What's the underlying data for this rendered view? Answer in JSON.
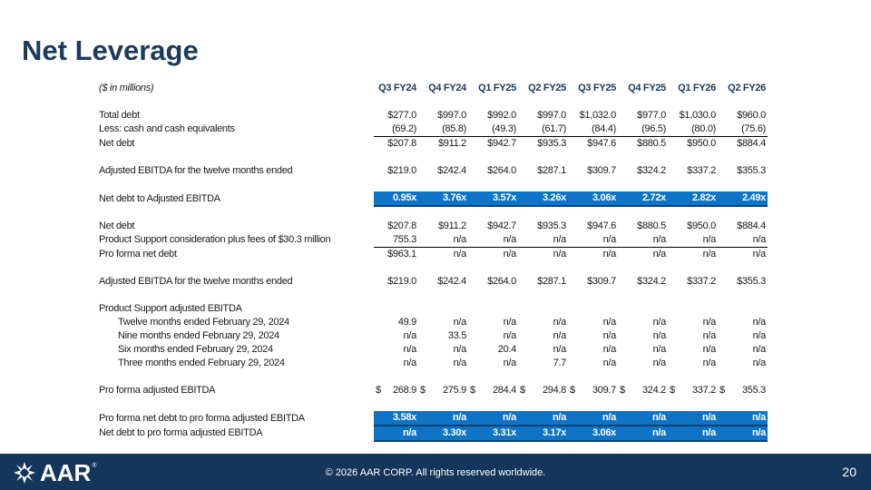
{
  "slide": {
    "title": "Net Leverage",
    "units_note": "($ in millions)",
    "columns": [
      "Q3 FY24",
      "Q4 FY24",
      "Q1 FY25",
      "Q2 FY25",
      "Q3 FY25",
      "Q4 FY25",
      "Q1 FY26",
      "Q2 FY26"
    ]
  },
  "rows": {
    "total_debt": {
      "label": "Total debt",
      "values": [
        "$277.0",
        "$997.0",
        "$992.0",
        "$997.0",
        "$1,032.0",
        "$977.0",
        "$1,030.0",
        "$960.0"
      ]
    },
    "less_cash": {
      "label": "Less: cash and cash equivalents",
      "values": [
        "(69.2)",
        "(85.8)",
        "(49.3)",
        "(61.7)",
        "(84.4)",
        "(96.5)",
        "(80.0)",
        "(75.6)"
      ]
    },
    "net_debt": {
      "label": "Net debt",
      "values": [
        "$207.8",
        "$911.2",
        "$942.7",
        "$935.3",
        "$947.6",
        "$880.5",
        "$950.0",
        "$884.4"
      ]
    },
    "adj_ebitda": {
      "label": "Adjusted EBITDA for the twelve months ended",
      "values": [
        "$219.0",
        "$242.4",
        "$264.0",
        "$287.1",
        "$309.7",
        "$324.2",
        "$337.2",
        "$355.3"
      ]
    },
    "net_debt_to_ebitda": {
      "label": "Net debt to Adjusted EBITDA",
      "values": [
        "0.95x",
        "3.76x",
        "3.57x",
        "3.26x",
        "3.06x",
        "2.72x",
        "2.82x",
        "2.49x"
      ]
    },
    "net_debt_2": {
      "label": "Net debt",
      "values": [
        "$207.8",
        "$911.2",
        "$942.7",
        "$935.3",
        "$947.6",
        "$880.5",
        "$950.0",
        "$884.4"
      ]
    },
    "product_support": {
      "label": "Product Support consideration plus fees of $30.3 million",
      "values": [
        "755.3",
        "n/a",
        "n/a",
        "n/a",
        "n/a",
        "n/a",
        "n/a",
        "n/a"
      ]
    },
    "pro_forma_net_debt": {
      "label": "Pro forma net debt",
      "values": [
        "$963.1",
        "n/a",
        "n/a",
        "n/a",
        "n/a",
        "n/a",
        "n/a",
        "n/a"
      ]
    },
    "adj_ebitda_2": {
      "label": "Adjusted EBITDA for the twelve months ended",
      "values": [
        "$219.0",
        "$242.4",
        "$264.0",
        "$287.1",
        "$309.7",
        "$324.2",
        "$337.2",
        "$355.3"
      ]
    },
    "ps_adj_ebitda": {
      "label": "Product Support adjusted EBITDA"
    },
    "twelve_months": {
      "label": "Twelve months ended February 29, 2024",
      "values": [
        "49.9",
        "n/a",
        "n/a",
        "n/a",
        "n/a",
        "n/a",
        "n/a",
        "n/a"
      ]
    },
    "nine_months": {
      "label": "Nine months ended February 29, 2024",
      "values": [
        "n/a",
        "33.5",
        "n/a",
        "n/a",
        "n/a",
        "n/a",
        "n/a",
        "n/a"
      ]
    },
    "six_months": {
      "label": "Six months ended February 29, 2024",
      "values": [
        "n/a",
        "n/a",
        "20.4",
        "n/a",
        "n/a",
        "n/a",
        "n/a",
        "n/a"
      ]
    },
    "three_months": {
      "label": "Three months ended February 29, 2024",
      "values": [
        "n/a",
        "n/a",
        "n/a",
        "7.7",
        "n/a",
        "n/a",
        "n/a",
        "n/a"
      ]
    },
    "pro_forma_adj_ebitda": {
      "label": "Pro forma adjusted EBITDA",
      "currency": "$",
      "values": [
        "268.9",
        "275.9",
        "284.4",
        "294.8",
        "309.7",
        "324.2",
        "337.2",
        "355.3"
      ]
    },
    "pf_net_debt_to_pf_ebitda": {
      "label": "Pro forma net debt to pro forma adjusted EBITDA",
      "values": [
        "3.58x",
        "n/a",
        "n/a",
        "n/a",
        "n/a",
        "n/a",
        "n/a",
        "n/a"
      ]
    },
    "net_debt_to_pf_ebitda": {
      "label": "Net debt to pro forma adjusted EBITDA",
      "values": [
        "n/a",
        "3.30x",
        "3.31x",
        "3.17x",
        "3.06x",
        "n/a",
        "n/a",
        "n/a"
      ]
    }
  },
  "footer": {
    "logo_text": "AAR",
    "logo_reg": "®",
    "logo_icon": "aar-star-icon",
    "copyright": "© 2026 AAR CORP. All rights reserved worldwide.",
    "page_number": "20"
  },
  "colors": {
    "title": "#1b3a5c",
    "highlight": "#0d74c8",
    "footer": "#14365a"
  }
}
